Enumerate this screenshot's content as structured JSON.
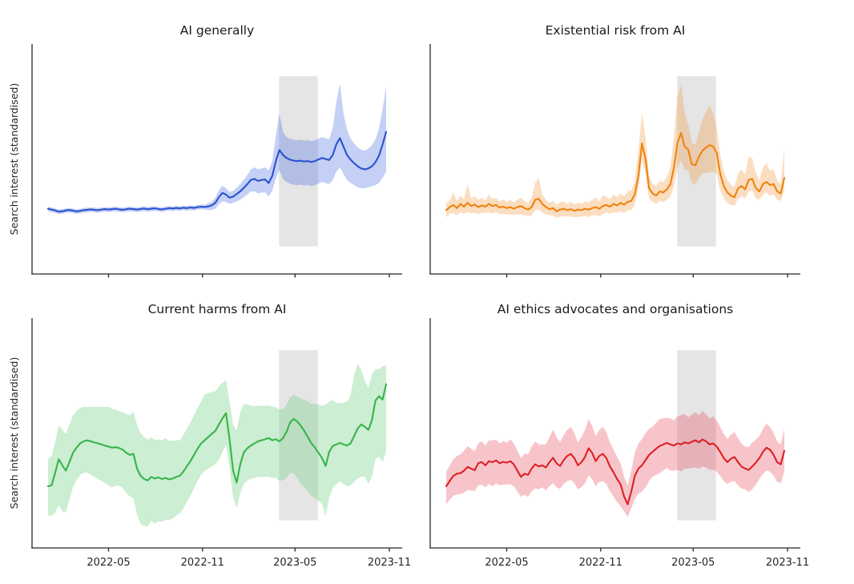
{
  "figure": {
    "ylabel": "Search interest (standardised)",
    "x_tick_labels": [
      "2022-05",
      "2022-11",
      "2023-05",
      "2023-11"
    ],
    "x_tick_weeks": [
      17.0,
      43.4,
      69.4,
      95.9
    ],
    "background_color": "#ffffff",
    "axis_color": "#262626",
    "highlight_band": {
      "color": "#bfbfbf",
      "opacity": 0.4,
      "weeks": [
        64.9,
        75.8
      ],
      "date_range": [
        "2023-03-25",
        "2023-06-07"
      ]
    }
  },
  "chart_data": [
    {
      "type": "line",
      "title": "AI generally",
      "line_color": "#2a52cf",
      "band_color": "rgba(77,111,225,0.33)",
      "x_start": "2022-01-02",
      "x_interval": "weekly",
      "n_points": 96,
      "xlim_weeks": [
        -4.5,
        99.5
      ],
      "ylim": [
        -3.5,
        7.5
      ],
      "grid": false,
      "legend": false,
      "mean": [
        -0.38,
        -0.42,
        -0.46,
        -0.52,
        -0.5,
        -0.46,
        -0.44,
        -0.47,
        -0.51,
        -0.48,
        -0.45,
        -0.43,
        -0.41,
        -0.43,
        -0.45,
        -0.42,
        -0.4,
        -0.42,
        -0.4,
        -0.38,
        -0.41,
        -0.43,
        -0.4,
        -0.38,
        -0.4,
        -0.42,
        -0.39,
        -0.37,
        -0.4,
        -0.38,
        -0.36,
        -0.39,
        -0.41,
        -0.38,
        -0.35,
        -0.37,
        -0.34,
        -0.36,
        -0.33,
        -0.35,
        -0.32,
        -0.34,
        -0.3,
        -0.28,
        -0.3,
        -0.27,
        -0.22,
        -0.1,
        0.18,
        0.38,
        0.3,
        0.15,
        0.2,
        0.32,
        0.45,
        0.62,
        0.8,
        1.0,
        1.05,
        0.95,
        1.0,
        1.02,
        0.85,
        1.2,
        1.9,
        2.43,
        2.2,
        2.05,
        1.97,
        1.92,
        1.9,
        1.92,
        1.88,
        1.9,
        1.86,
        1.9,
        1.98,
        2.05,
        2.0,
        1.95,
        2.2,
        2.7,
        3.0,
        2.6,
        2.2,
        1.97,
        1.8,
        1.65,
        1.55,
        1.5,
        1.55,
        1.65,
        1.85,
        2.16,
        2.7,
        3.3
      ],
      "band_below": [
        0.12,
        0.12,
        0.12,
        0.12,
        0.12,
        0.12,
        0.12,
        0.12,
        0.12,
        0.12,
        0.12,
        0.12,
        0.12,
        0.12,
        0.12,
        0.12,
        0.12,
        0.12,
        0.12,
        0.12,
        0.12,
        0.12,
        0.12,
        0.12,
        0.12,
        0.12,
        0.12,
        0.12,
        0.12,
        0.12,
        0.12,
        0.12,
        0.12,
        0.12,
        0.12,
        0.12,
        0.12,
        0.12,
        0.12,
        0.12,
        0.12,
        0.12,
        0.12,
        0.12,
        0.12,
        0.18,
        0.22,
        0.28,
        0.35,
        0.4,
        0.35,
        0.3,
        0.3,
        0.35,
        0.4,
        0.45,
        0.5,
        0.55,
        0.6,
        0.6,
        0.6,
        0.62,
        0.65,
        0.7,
        0.85,
        0.95,
        1.15,
        1.15,
        1.15,
        1.15,
        1.15,
        1.15,
        1.15,
        1.15,
        1.15,
        1.15,
        1.15,
        1.15,
        1.15,
        1.15,
        1.2,
        1.3,
        1.4,
        1.3,
        1.2,
        1.1,
        1.05,
        1.0,
        0.95,
        0.9,
        0.9,
        0.95,
        1.1,
        1.3,
        1.6,
        1.9
      ],
      "band_above": [
        0.1,
        0.1,
        0.1,
        0.1,
        0.1,
        0.1,
        0.1,
        0.1,
        0.1,
        0.1,
        0.1,
        0.1,
        0.1,
        0.1,
        0.1,
        0.1,
        0.1,
        0.1,
        0.1,
        0.1,
        0.1,
        0.1,
        0.1,
        0.1,
        0.1,
        0.1,
        0.1,
        0.1,
        0.1,
        0.1,
        0.1,
        0.1,
        0.1,
        0.1,
        0.1,
        0.1,
        0.1,
        0.1,
        0.1,
        0.1,
        0.1,
        0.1,
        0.1,
        0.1,
        0.1,
        0.15,
        0.18,
        0.25,
        0.32,
        0.35,
        0.3,
        0.28,
        0.28,
        0.3,
        0.35,
        0.4,
        0.45,
        0.5,
        0.55,
        0.55,
        0.55,
        0.58,
        0.6,
        0.7,
        1.2,
        1.75,
        1.1,
        1.0,
        1.0,
        1.0,
        1.0,
        1.0,
        1.0,
        1.0,
        1.0,
        1.0,
        1.0,
        1.0,
        1.0,
        1.0,
        1.3,
        2.0,
        2.6,
        1.6,
        1.2,
        1.0,
        0.95,
        0.9,
        0.9,
        0.9,
        0.95,
        1.0,
        1.1,
        1.3,
        1.7,
        2.2
      ]
    },
    {
      "type": "line",
      "title": "Existential risk from AI",
      "line_color": "#ee830f",
      "band_color": "rgba(243,150,60,0.32)",
      "x_start": "2022-01-02",
      "x_interval": "weekly",
      "n_points": 96,
      "xlim_weeks": [
        -4.5,
        99.5
      ],
      "ylim": [
        -3.5,
        7.5
      ],
      "grid": false,
      "legend": false,
      "mean": [
        -0.45,
        -0.3,
        -0.2,
        -0.35,
        -0.15,
        -0.28,
        -0.1,
        -0.25,
        -0.18,
        -0.3,
        -0.22,
        -0.28,
        -0.15,
        -0.25,
        -0.2,
        -0.32,
        -0.28,
        -0.35,
        -0.3,
        -0.38,
        -0.3,
        -0.25,
        -0.35,
        -0.42,
        -0.3,
        0.05,
        0.1,
        -0.15,
        -0.3,
        -0.4,
        -0.35,
        -0.5,
        -0.42,
        -0.38,
        -0.45,
        -0.4,
        -0.48,
        -0.42,
        -0.45,
        -0.38,
        -0.42,
        -0.35,
        -0.3,
        -0.38,
        -0.25,
        -0.2,
        -0.28,
        -0.15,
        -0.22,
        -0.1,
        -0.18,
        -0.05,
        0.0,
        0.3,
        1.2,
        2.74,
        2.0,
        0.6,
        0.35,
        0.25,
        0.45,
        0.4,
        0.55,
        0.8,
        1.6,
        2.8,
        3.24,
        2.6,
        2.45,
        1.75,
        1.7,
        2.1,
        2.4,
        2.55,
        2.66,
        2.6,
        2.3,
        1.3,
        0.71,
        0.4,
        0.25,
        0.17,
        0.6,
        0.71,
        0.55,
        1.0,
        1.05,
        0.6,
        0.45,
        0.8,
        0.9,
        0.75,
        0.8,
        0.45,
        0.35,
        1.1
      ],
      "band_below": [
        0.35,
        0.3,
        0.4,
        0.35,
        0.4,
        0.35,
        0.45,
        0.35,
        0.4,
        0.35,
        0.35,
        0.3,
        0.4,
        0.35,
        0.35,
        0.3,
        0.35,
        0.3,
        0.35,
        0.3,
        0.35,
        0.4,
        0.35,
        0.3,
        0.4,
        0.5,
        0.55,
        0.4,
        0.35,
        0.3,
        0.35,
        0.3,
        0.35,
        0.35,
        0.3,
        0.35,
        0.3,
        0.35,
        0.3,
        0.35,
        0.35,
        0.35,
        0.4,
        0.35,
        0.4,
        0.35,
        0.35,
        0.4,
        0.35,
        0.4,
        0.4,
        0.4,
        0.45,
        0.45,
        0.6,
        0.8,
        0.7,
        0.5,
        0.4,
        0.4,
        0.45,
        0.45,
        0.5,
        0.6,
        0.9,
        1.2,
        1.3,
        1.1,
        1.0,
        0.9,
        0.9,
        1.0,
        1.1,
        1.2,
        1.3,
        1.2,
        1.0,
        0.8,
        0.6,
        0.5,
        0.45,
        0.4,
        0.5,
        0.5,
        0.45,
        0.55,
        0.55,
        0.5,
        0.4,
        0.5,
        0.5,
        0.5,
        0.5,
        0.4,
        0.35,
        0.6
      ],
      "band_above": [
        0.35,
        0.3,
        0.6,
        0.35,
        0.4,
        0.35,
        0.9,
        0.35,
        0.4,
        0.35,
        0.35,
        0.3,
        0.45,
        0.35,
        0.35,
        0.3,
        0.35,
        0.3,
        0.35,
        0.3,
        0.35,
        0.4,
        0.35,
        0.3,
        0.45,
        0.8,
        1.0,
        0.45,
        0.35,
        0.3,
        0.35,
        0.3,
        0.35,
        0.35,
        0.3,
        0.35,
        0.3,
        0.35,
        0.3,
        0.35,
        0.35,
        0.4,
        0.45,
        0.35,
        0.5,
        0.4,
        0.35,
        0.45,
        0.4,
        0.45,
        0.4,
        0.5,
        0.5,
        0.6,
        1.2,
        1.5,
        1.0,
        0.6,
        0.45,
        0.45,
        0.5,
        0.5,
        0.6,
        0.8,
        1.5,
        2.2,
        2.3,
        1.6,
        1.2,
        1.0,
        1.0,
        1.2,
        1.5,
        1.7,
        1.9,
        1.6,
        1.2,
        0.9,
        0.7,
        0.6,
        0.5,
        0.5,
        0.7,
        0.8,
        0.7,
        1.1,
        1.0,
        0.7,
        0.55,
        0.8,
        0.9,
        0.7,
        0.7,
        0.5,
        0.45,
        1.4
      ]
    },
    {
      "type": "line",
      "title": "Current harms from AI",
      "line_color": "#36b44a",
      "band_color": "rgba(110,205,125,0.35)",
      "x_start": "2022-01-02",
      "x_interval": "weekly",
      "n_points": 96,
      "xlim_weeks": [
        -4.5,
        99.5
      ],
      "ylim": [
        -4.0,
        7.0
      ],
      "grid": false,
      "legend": false,
      "mean": [
        -1.05,
        -1.0,
        -0.4,
        0.25,
        -0.05,
        -0.3,
        0.1,
        0.55,
        0.8,
        1.0,
        1.1,
        1.15,
        1.1,
        1.05,
        1.0,
        0.95,
        0.9,
        0.85,
        0.8,
        0.82,
        0.78,
        0.7,
        0.55,
        0.45,
        0.5,
        -0.2,
        -0.55,
        -0.7,
        -0.77,
        -0.6,
        -0.68,
        -0.62,
        -0.7,
        -0.65,
        -0.72,
        -0.68,
        -0.6,
        -0.55,
        -0.35,
        -0.1,
        0.15,
        0.45,
        0.75,
        1.0,
        1.15,
        1.3,
        1.46,
        1.6,
        1.91,
        2.2,
        2.45,
        1.2,
        -0.3,
        -0.88,
        0.0,
        0.57,
        0.77,
        0.9,
        1.0,
        1.1,
        1.15,
        1.2,
        1.26,
        1.15,
        1.2,
        1.1,
        1.25,
        1.55,
        2.0,
        2.18,
        2.05,
        1.85,
        1.6,
        1.3,
        1.0,
        0.8,
        0.55,
        0.3,
        -0.08,
        0.6,
        0.88,
        0.95,
        1.03,
        0.95,
        0.9,
        1.0,
        1.35,
        1.72,
        1.91,
        1.8,
        1.65,
        2.1,
        3.06,
        3.26,
        3.1,
        3.83
      ],
      "band_below": [
        1.4,
        1.45,
        1.9,
        2.2,
        2.2,
        2.0,
        1.8,
        1.65,
        1.55,
        1.5,
        1.5,
        1.55,
        1.6,
        1.65,
        1.7,
        1.75,
        1.8,
        1.85,
        1.9,
        1.85,
        1.8,
        1.85,
        1.9,
        2.0,
        2.1,
        2.2,
        2.3,
        2.25,
        2.2,
        2.1,
        2.15,
        2.1,
        2.05,
        2.0,
        1.95,
        1.9,
        1.85,
        1.8,
        1.75,
        1.7,
        1.65,
        1.6,
        1.55,
        1.5,
        1.45,
        1.5,
        1.55,
        1.6,
        1.7,
        1.6,
        1.5,
        1.4,
        1.3,
        1.2,
        1.4,
        1.5,
        1.55,
        1.6,
        1.65,
        1.7,
        1.75,
        1.8,
        1.85,
        1.8,
        1.85,
        1.9,
        2.0,
        2.2,
        2.4,
        2.6,
        2.7,
        2.8,
        2.7,
        2.6,
        2.5,
        2.4,
        2.3,
        2.2,
        2.4,
        2.2,
        2.0,
        1.9,
        1.85,
        1.9,
        1.95,
        2.0,
        2.2,
        2.4,
        2.5,
        2.4,
        2.6,
        2.7,
        2.8,
        2.9,
        3.0,
        3.2
      ],
      "band_above": [
        1.3,
        1.4,
        1.5,
        1.6,
        1.7,
        1.75,
        1.8,
        1.8,
        1.75,
        1.7,
        1.65,
        1.6,
        1.65,
        1.7,
        1.75,
        1.8,
        1.85,
        1.9,
        1.85,
        1.8,
        1.75,
        1.8,
        1.85,
        1.9,
        2.0,
        2.1,
        2.05,
        2.0,
        1.95,
        1.9,
        1.85,
        1.8,
        1.85,
        1.9,
        1.85,
        1.8,
        1.75,
        1.7,
        1.75,
        1.8,
        1.85,
        1.9,
        1.95,
        2.0,
        2.2,
        2.1,
        2.0,
        1.9,
        1.8,
        1.7,
        1.6,
        1.8,
        2.2,
        2.5,
        2.5,
        2.3,
        2.1,
        1.9,
        1.8,
        1.7,
        1.65,
        1.6,
        1.55,
        1.6,
        1.55,
        1.5,
        1.4,
        1.3,
        1.2,
        1.15,
        1.2,
        1.3,
        1.5,
        1.7,
        1.9,
        2.1,
        2.3,
        2.5,
        2.95,
        2.4,
        2.2,
        2.0,
        1.9,
        2.0,
        2.1,
        2.3,
        2.9,
        3.1,
        2.6,
        2.2,
        2.0,
        2.2,
        1.5,
        1.3,
        1.6,
        0.9
      ]
    },
    {
      "type": "line",
      "title": "AI ethics advocates and organisations",
      "line_color": "#de1f26",
      "band_color": "rgba(232,80,90,0.33)",
      "x_start": "2022-01-02",
      "x_interval": "weekly",
      "n_points": 96,
      "xlim_weeks": [
        -4.5,
        99.5
      ],
      "ylim": [
        -4.0,
        7.0
      ],
      "grid": false,
      "legend": false,
      "mean": [
        -1.05,
        -0.8,
        -0.55,
        -0.45,
        -0.42,
        -0.3,
        -0.12,
        -0.2,
        -0.28,
        0.05,
        0.11,
        -0.05,
        0.15,
        0.1,
        0.19,
        0.05,
        0.12,
        0.08,
        0.15,
        0.0,
        -0.3,
        -0.6,
        -0.45,
        -0.5,
        -0.2,
        0.0,
        -0.1,
        -0.05,
        -0.15,
        0.1,
        0.31,
        0.05,
        -0.08,
        0.2,
        0.4,
        0.5,
        0.3,
        -0.05,
        0.1,
        0.35,
        0.77,
        0.55,
        0.15,
        0.4,
        0.5,
        0.3,
        -0.1,
        -0.38,
        -0.7,
        -0.96,
        -1.55,
        -1.91,
        -1.3,
        -0.55,
        -0.2,
        -0.05,
        0.2,
        0.45,
        0.6,
        0.75,
        0.88,
        0.95,
        1.03,
        0.95,
        0.9,
        1.0,
        0.95,
        1.05,
        1.0,
        1.08,
        1.15,
        1.05,
        1.19,
        1.1,
        0.95,
        1.0,
        0.85,
        0.6,
        0.3,
        0.11,
        0.27,
        0.35,
        0.1,
        -0.11,
        -0.2,
        -0.27,
        -0.1,
        0.08,
        0.3,
        0.6,
        0.8,
        0.7,
        0.45,
        0.1,
        0.0,
        0.65
      ],
      "band_below": [
        0.85,
        0.9,
        0.95,
        1.0,
        1.0,
        1.05,
        1.1,
        1.05,
        1.0,
        1.05,
        1.1,
        1.05,
        1.1,
        1.15,
        1.1,
        1.05,
        1.1,
        1.05,
        1.1,
        1.05,
        1.0,
        0.95,
        1.0,
        1.05,
        1.1,
        1.15,
        1.1,
        1.05,
        1.1,
        1.15,
        1.2,
        1.15,
        1.1,
        1.15,
        1.2,
        1.25,
        1.2,
        1.15,
        1.2,
        1.25,
        1.3,
        1.25,
        1.2,
        1.25,
        1.3,
        1.25,
        1.2,
        1.15,
        1.1,
        1.05,
        0.7,
        0.6,
        0.8,
        1.1,
        1.2,
        1.25,
        1.3,
        1.25,
        1.2,
        1.25,
        1.3,
        1.25,
        1.2,
        1.25,
        1.2,
        1.25,
        1.3,
        1.25,
        1.2,
        1.25,
        1.3,
        1.25,
        1.3,
        1.25,
        1.2,
        1.25,
        1.2,
        1.15,
        1.1,
        1.05,
        1.1,
        1.15,
        1.1,
        1.05,
        1.0,
        1.05,
        1.1,
        1.05,
        1.0,
        1.05,
        1.1,
        1.05,
        1.0,
        0.95,
        0.9,
        1.0
      ],
      "band_above": [
        0.7,
        0.75,
        0.8,
        0.85,
        0.9,
        0.95,
        1.0,
        0.95,
        0.9,
        0.95,
        1.0,
        0.95,
        1.0,
        1.05,
        1.0,
        0.95,
        1.0,
        0.95,
        1.05,
        1.0,
        0.95,
        0.9,
        0.95,
        1.0,
        1.05,
        1.1,
        1.05,
        1.0,
        1.1,
        1.2,
        1.35,
        1.25,
        1.15,
        1.2,
        1.25,
        1.3,
        1.2,
        1.1,
        1.2,
        1.3,
        1.4,
        1.3,
        1.2,
        1.25,
        1.3,
        1.25,
        1.15,
        1.1,
        1.05,
        1.0,
        0.95,
        0.9,
        1.0,
        1.1,
        1.2,
        1.25,
        1.3,
        1.25,
        1.2,
        1.25,
        1.3,
        1.25,
        1.2,
        1.25,
        1.2,
        1.3,
        1.4,
        1.35,
        1.25,
        1.3,
        1.35,
        1.3,
        1.35,
        1.3,
        1.25,
        1.3,
        1.25,
        1.2,
        1.15,
        1.1,
        1.15,
        1.2,
        1.15,
        1.1,
        1.05,
        1.1,
        1.15,
        1.1,
        1.05,
        1.1,
        1.15,
        1.1,
        1.05,
        1.0,
        0.95,
        1.05
      ]
    }
  ]
}
